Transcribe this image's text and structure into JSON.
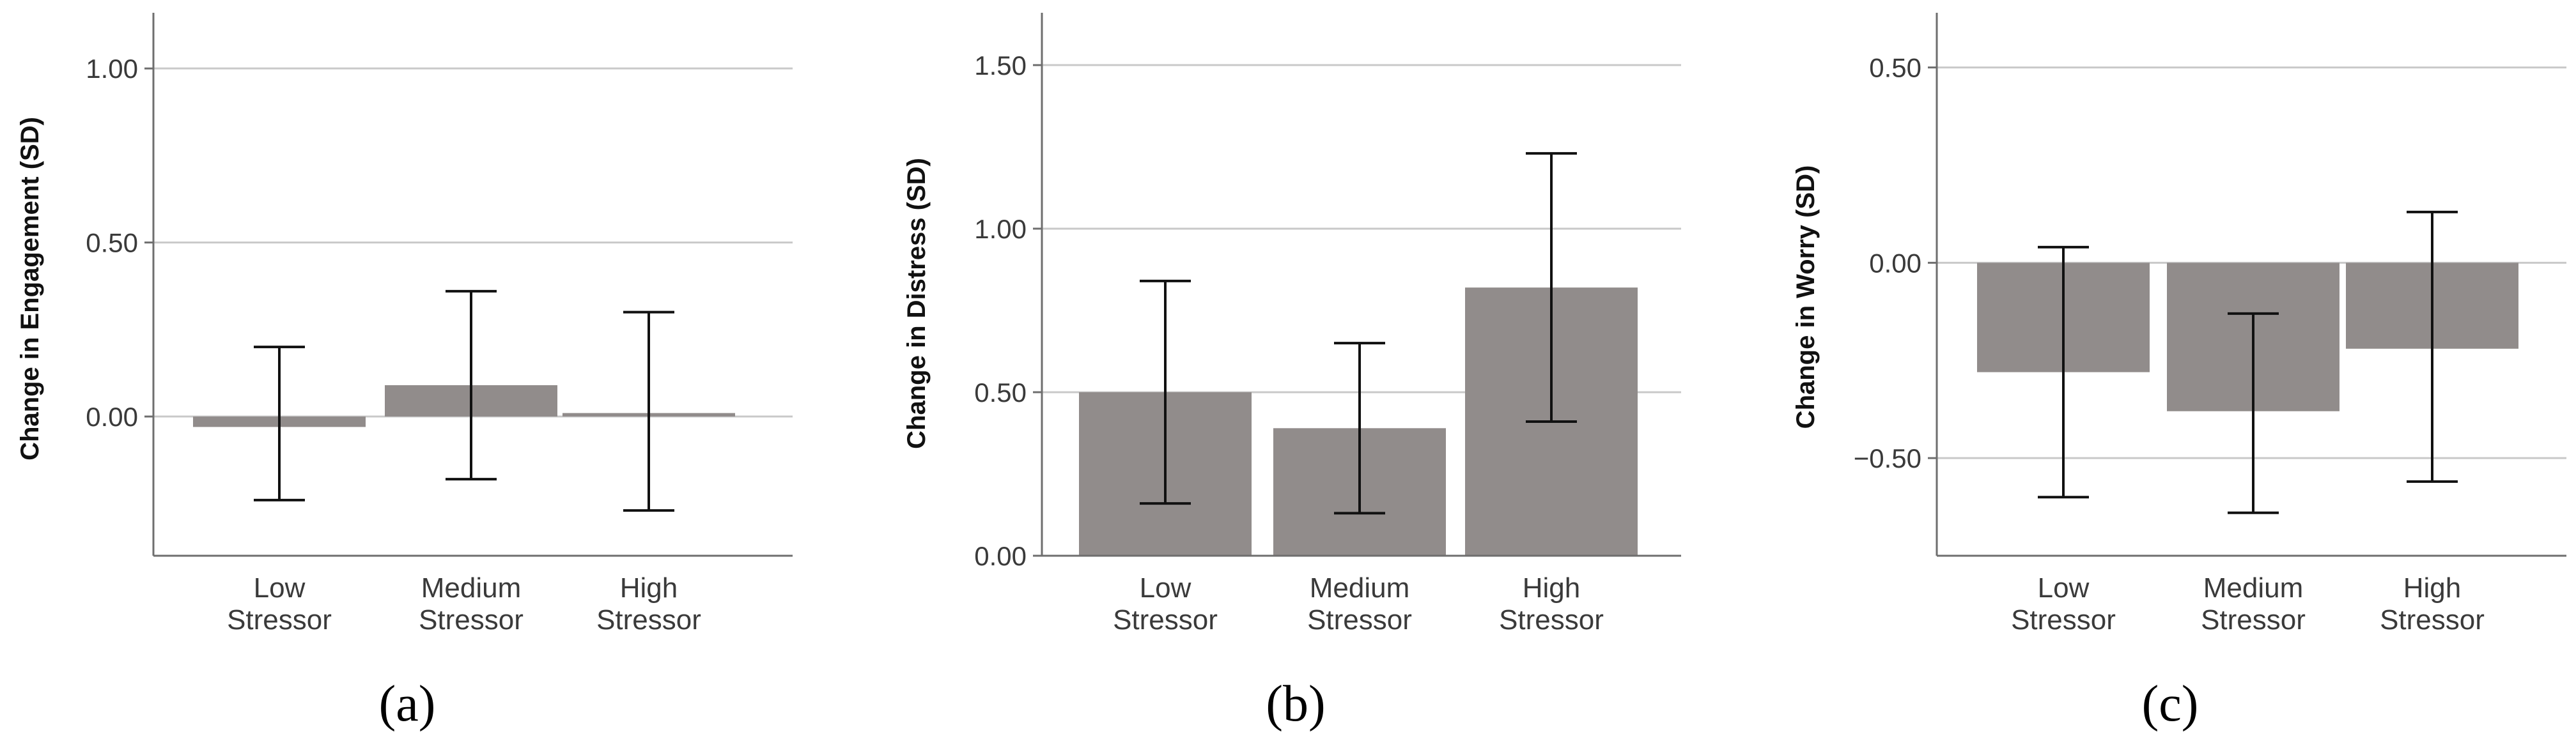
{
  "colors": {
    "bar": "#918c8b",
    "grid": "#c9c9c9",
    "axis": "#6e6e6e",
    "error": "#111111"
  },
  "chart_data": [
    {
      "type": "bar",
      "panel_label": "(a)",
      "ylabel": "Change in Engagement (SD)",
      "categories": [
        [
          "Low",
          "Stressor"
        ],
        [
          "Medium",
          "Stressor"
        ],
        [
          "High",
          "Stressor"
        ]
      ],
      "values": [
        -0.03,
        0.09,
        0.01
      ],
      "error_low": [
        -0.24,
        -0.18,
        -0.27
      ],
      "error_high": [
        0.2,
        0.36,
        0.3
      ],
      "ylim": [
        -0.4,
        1.16
      ],
      "yticks": [
        0.0,
        0.5,
        1.0
      ],
      "ytick_labels": [
        "0.00",
        "0.50",
        "1.00"
      ],
      "grid": true
    },
    {
      "type": "bar",
      "panel_label": "(b)",
      "ylabel": "Change in Distress (SD)",
      "categories": [
        [
          "Low",
          "Stressor"
        ],
        [
          "Medium",
          "Stressor"
        ],
        [
          "High",
          "Stressor"
        ]
      ],
      "values": [
        0.5,
        0.39,
        0.82
      ],
      "error_low": [
        0.16,
        0.13,
        0.41
      ],
      "error_high": [
        0.84,
        0.65,
        1.23
      ],
      "ylim": [
        0.0,
        1.66
      ],
      "yticks": [
        0.0,
        0.5,
        1.0,
        1.5
      ],
      "ytick_labels": [
        "0.00",
        "0.50",
        "1.00",
        "1.50"
      ],
      "grid": true
    },
    {
      "type": "bar",
      "panel_label": "(c)",
      "ylabel": "Change in Worry (SD)",
      "categories": [
        [
          "Low",
          "Stressor"
        ],
        [
          "Medium",
          "Stressor"
        ],
        [
          "High",
          "Stressor"
        ]
      ],
      "values": [
        -0.28,
        -0.38,
        -0.22
      ],
      "error_low": [
        -0.6,
        -0.64,
        -0.56
      ],
      "error_high": [
        0.04,
        -0.13,
        0.13
      ],
      "ylim": [
        -0.75,
        0.64
      ],
      "yticks": [
        -0.5,
        0.0,
        0.5
      ],
      "ytick_labels": [
        "−0.50",
        "0.00",
        "0.50"
      ],
      "grid": true
    }
  ]
}
